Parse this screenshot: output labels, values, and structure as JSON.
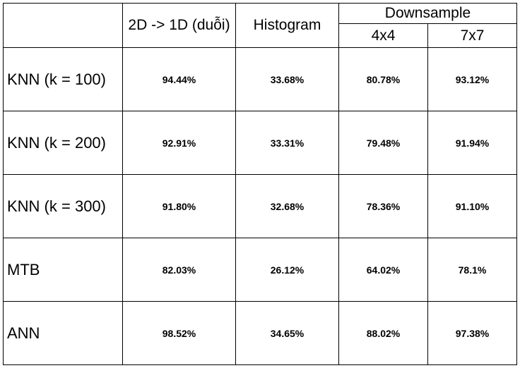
{
  "header": {
    "col_2d_1d": "2D -> 1D (duỗi)",
    "col_histogram": "Histogram",
    "col_downsample": "Downsample",
    "sub_4x4": "4x4",
    "sub_7x7": "7x7"
  },
  "rows": [
    {
      "label": "KNN (k = 100)",
      "flat": "94.44%",
      "histogram": "33.68%",
      "ds4": "80.78%",
      "ds7": "93.12%"
    },
    {
      "label": "KNN (k = 200)",
      "flat": "92.91%",
      "histogram": "33.31%",
      "ds4": "79.48%",
      "ds7": "91.94%"
    },
    {
      "label": "KNN (k = 300)",
      "flat": "91.80%",
      "histogram": "32.68%",
      "ds4": "78.36%",
      "ds7": "91.10%"
    },
    {
      "label": "MTB",
      "flat": "82.03%",
      "histogram": "26.12%",
      "ds4": "64.02%",
      "ds7": "78.1%"
    },
    {
      "label": "ANN",
      "flat": "98.52%",
      "histogram": "34.65%",
      "ds4": "88.02%",
      "ds7": "97.38%"
    }
  ]
}
